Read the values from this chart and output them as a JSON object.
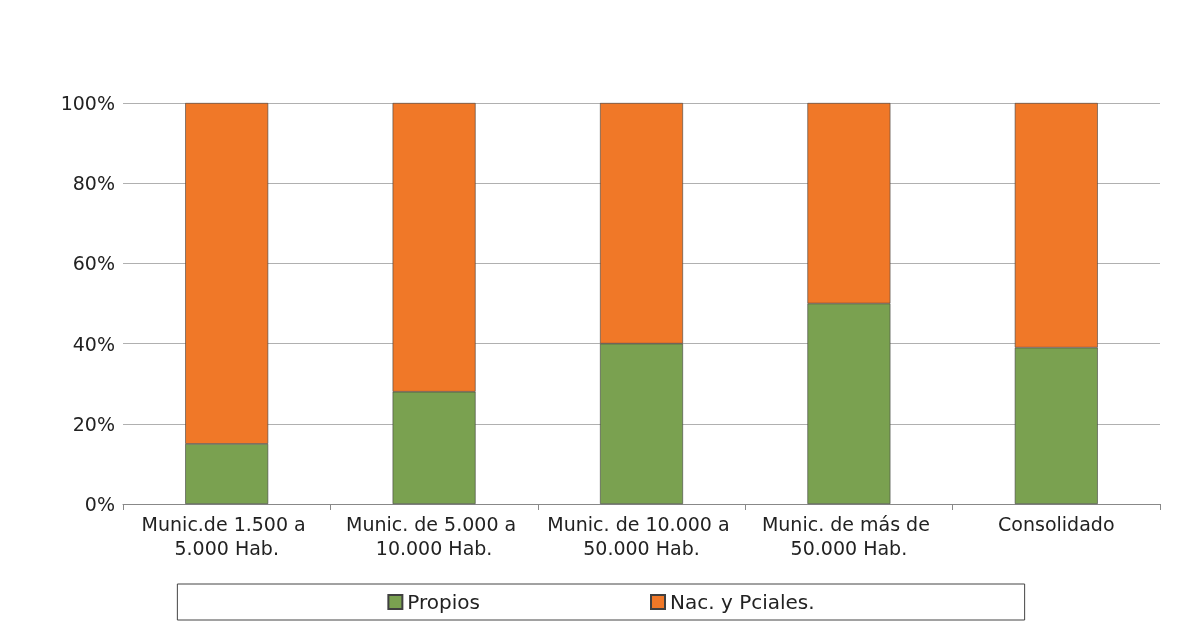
{
  "chart_data": {
    "type": "bar",
    "stacked": true,
    "categories": [
      "Munic.de 1.500 a 5.000 Hab.",
      "Munic. de 5.000 a 10.000 Hab.",
      "Munic. de 10.000 a 50.000 Hab.",
      "Munic. de más de 50.000 Hab.",
      "Consolidado"
    ],
    "series": [
      {
        "name": "Propios",
        "color": "#7aa150",
        "values": [
          15,
          28,
          40,
          50,
          39
        ]
      },
      {
        "name": "Nac. y Pciales.",
        "color": "#f07828",
        "values": [
          85,
          72,
          60,
          50,
          61
        ]
      }
    ],
    "ylim": [
      0,
      100
    ],
    "yticks": [
      {
        "value": 0,
        "label": "0%"
      },
      {
        "value": 20,
        "label": "20%"
      },
      {
        "value": 40,
        "label": "40%"
      },
      {
        "value": 60,
        "label": "60%"
      },
      {
        "value": 80,
        "label": "80%"
      },
      {
        "value": 100,
        "label": "100%"
      }
    ],
    "grid": "y",
    "legend": "bottom"
  }
}
